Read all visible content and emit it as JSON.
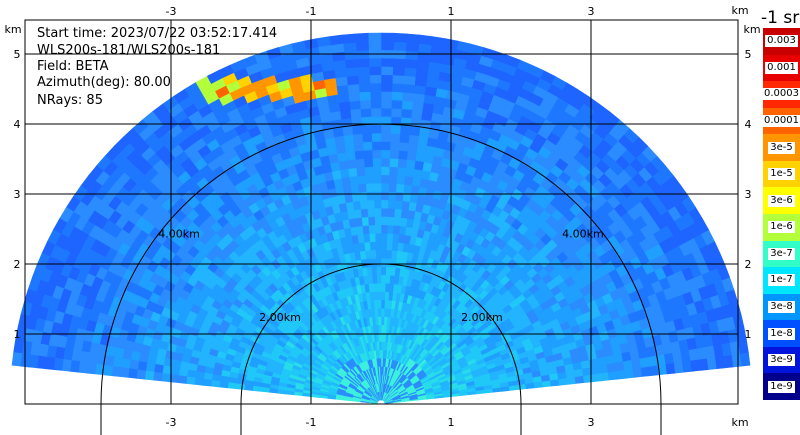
{
  "info": {
    "start_time": "Start time: 2023/07/22 03:52:17.414",
    "instrument": "WLS200s-181/WLS200s-181",
    "field": "Field: BETA",
    "azimuth": "Azimuth(deg): 80.00",
    "nrays": "NRays: 85"
  },
  "chart_data": {
    "type": "heatmap",
    "subtype": "rhi-sector",
    "x_ticks": [
      "-3",
      "-1",
      "1",
      "3"
    ],
    "y_ticks": [
      "1",
      "2",
      "3",
      "4",
      "5"
    ],
    "x_unit": "km",
    "y_unit": "km",
    "xlim": [
      -5.4,
      5.4
    ],
    "ylim": [
      0,
      5.4
    ],
    "range_rings": [
      "2.00km",
      "4.00km"
    ],
    "max_range_km": 5.3,
    "elevation_range_deg": [
      6,
      174
    ],
    "colorbar": {
      "units": "-1 sr",
      "labels": [
        "0.003",
        "0.001",
        "0.0003",
        "0.0001",
        "3e-5",
        "1e-5",
        "3e-6",
        "1e-6",
        "3e-7",
        "1e-7",
        "3e-8",
        "1e-8",
        "3e-9",
        "1e-9"
      ],
      "colors": [
        "#c80000",
        "#e60000",
        "#ff2800",
        "#ff6400",
        "#ff9600",
        "#ffd200",
        "#ffff00",
        "#b4ff3c",
        "#32ffc8",
        "#00e6ff",
        "#0096ff",
        "#0050ff",
        "#0014dc",
        "#00008c"
      ]
    }
  }
}
